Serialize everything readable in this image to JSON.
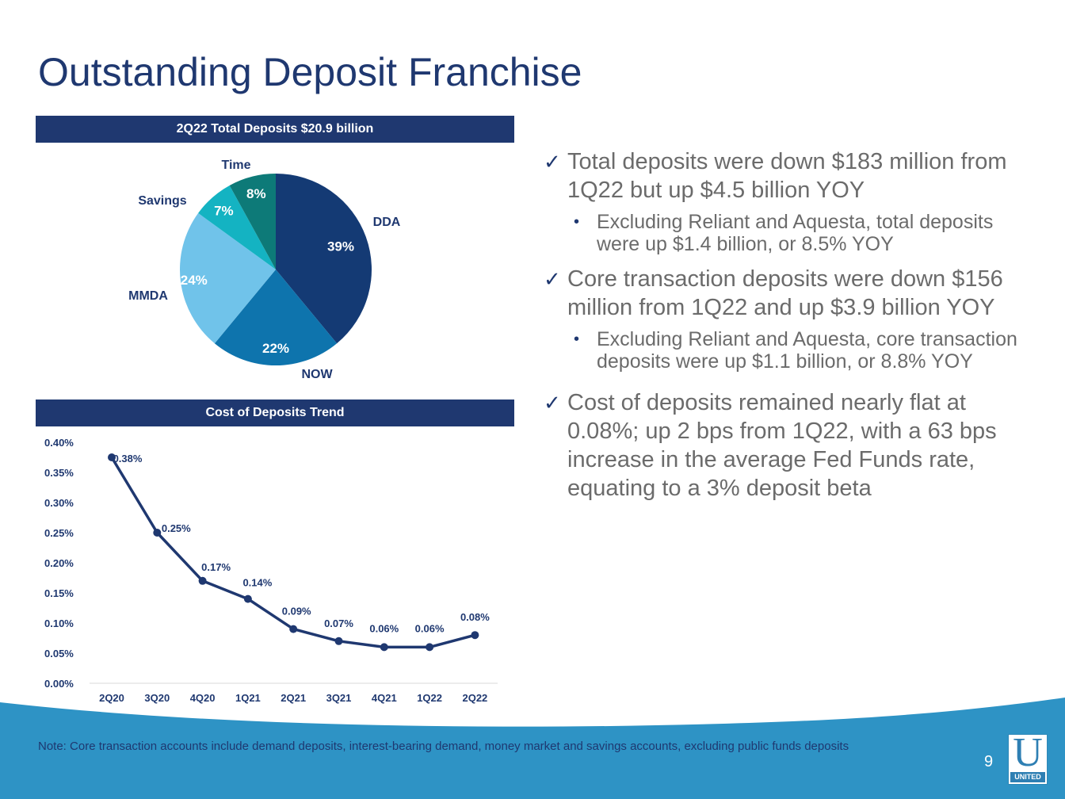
{
  "title": "Outstanding Deposit Franchise",
  "pie_header": "2Q22 Total Deposits $20.9 billion",
  "line_header": "Cost of Deposits Trend",
  "colors": {
    "navy": "#1f3870",
    "dda": "#143a74",
    "now": "#0e74ad",
    "mmda": "#70c3ea",
    "savings": "#14b3c2",
    "time": "#0d7a78",
    "footer": "#2e93c5"
  },
  "chart_data": [
    {
      "type": "pie",
      "title": "2Q22 Total Deposits $20.9 billion",
      "slices": [
        {
          "name": "DDA",
          "value": 39,
          "label": "39%"
        },
        {
          "name": "NOW",
          "value": 22,
          "label": "22%"
        },
        {
          "name": "MMDA",
          "value": 24,
          "label": "24%"
        },
        {
          "name": "Savings",
          "value": 7,
          "label": "7%"
        },
        {
          "name": "Time",
          "value": 8,
          "label": "8%"
        }
      ]
    },
    {
      "type": "line",
      "title": "Cost of Deposits Trend",
      "categories": [
        "2Q20",
        "3Q20",
        "4Q20",
        "1Q21",
        "2Q21",
        "3Q21",
        "4Q21",
        "1Q22",
        "2Q22"
      ],
      "values": [
        0.375,
        0.25,
        0.17,
        0.14,
        0.09,
        0.07,
        0.06,
        0.06,
        0.08
      ],
      "data_labels": [
        "0.38%",
        "0.25%",
        "0.17%",
        "0.14%",
        "0.09%",
        "0.07%",
        "0.06%",
        "0.06%",
        "0.08%"
      ],
      "ylim": [
        0,
        0.4
      ],
      "yticks": [
        "0.00%",
        "0.05%",
        "0.10%",
        "0.15%",
        "0.20%",
        "0.25%",
        "0.30%",
        "0.35%",
        "0.40%"
      ],
      "grid": false
    }
  ],
  "bullets": [
    {
      "text": "Total deposits were down $183 million from 1Q22 but up $4.5 billion YOY",
      "sub": [
        "Excluding Reliant and Aquesta, total deposits were up $1.4 billion, or 8.5% YOY"
      ]
    },
    {
      "text": "Core transaction deposits were down $156 million from 1Q22 and up $3.9 billion YOY",
      "sub": [
        "Excluding Reliant and Aquesta, core transaction deposits were up $1.1 billion, or 8.8% YOY"
      ]
    },
    {
      "text": "Cost of deposits remained nearly flat at 0.08%; up 2 bps from 1Q22, with a 63 bps increase in the average Fed Funds rate, equating to a 3% deposit beta",
      "sub": []
    }
  ],
  "note": "Note: Core transaction accounts include demand deposits, interest-bearing demand, money market and savings accounts, excluding public funds deposits",
  "page_number": "9",
  "logo_word": "UNITED",
  "logo_letter": "U"
}
